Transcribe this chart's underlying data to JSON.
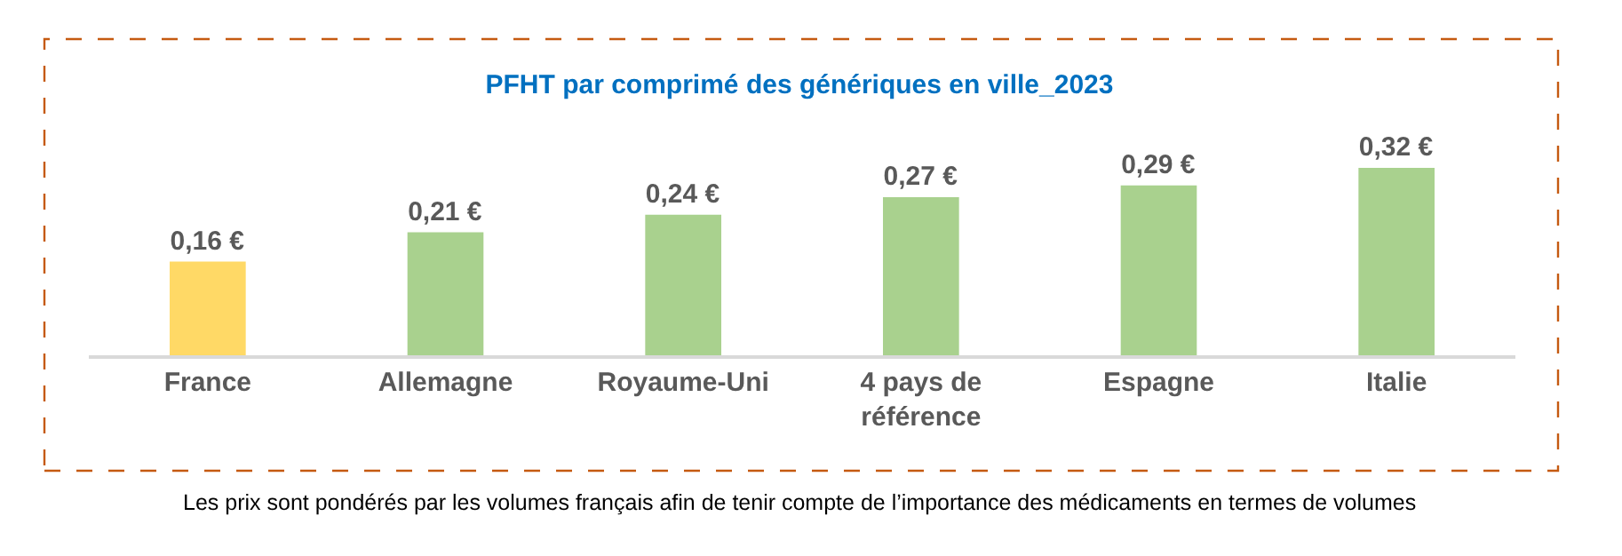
{
  "chart_data": {
    "type": "bar",
    "title": "PFHT par comprimé des génériques en ville_2023",
    "categories": [
      "France",
      "Allemagne",
      "Royaume-Uni",
      "4 pays de référence",
      "Espagne",
      "Italie"
    ],
    "values": [
      0.16,
      0.21,
      0.24,
      0.27,
      0.29,
      0.32
    ],
    "colors": [
      "#ffd966",
      "#a9d18e",
      "#a9d18e",
      "#a9d18e",
      "#a9d18e",
      "#a9d18e"
    ],
    "value_labels": [
      "0,16 €",
      "0,21 €",
      "0,24 €",
      "0,27 €",
      "0,29 €",
      "0,32 €"
    ],
    "annotations": [
      "Les prix sont pondérés par les volumes français afin de tenir compte de l’importance des médicaments en termes de volumes"
    ]
  }
}
